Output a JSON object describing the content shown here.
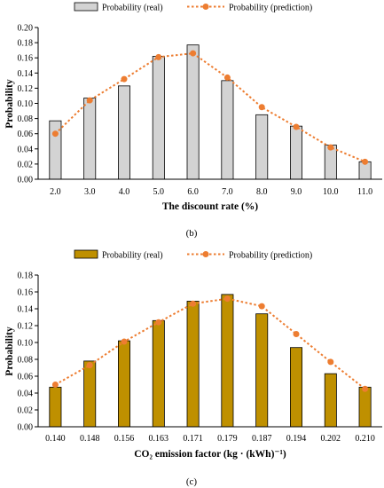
{
  "chart_data": [
    {
      "type": "bar",
      "panel_label": "(b)",
      "xlabel": "The discount rate (%)",
      "ylabel": "Probability",
      "ylim": [
        0,
        0.2
      ],
      "yticks": [
        "0.00",
        "0.02",
        "0.04",
        "0.06",
        "0.08",
        "0.10",
        "0.12",
        "0.14",
        "0.16",
        "0.18",
        "0.20"
      ],
      "categories": [
        "2.0",
        "3.0",
        "4.0",
        "5.0",
        "6.0",
        "7.0",
        "8.0",
        "9.0",
        "10.0",
        "11.0"
      ],
      "series": [
        {
          "name": "Probability (real)",
          "kind": "bar",
          "color": "#d3d3d3",
          "values": [
            0.077,
            0.107,
            0.123,
            0.162,
            0.177,
            0.13,
            0.085,
            0.07,
            0.045,
            0.023
          ]
        },
        {
          "name": "Probability (prediction)",
          "kind": "line",
          "color": "#ed7d31",
          "values": [
            0.06,
            0.104,
            0.132,
            0.161,
            0.166,
            0.134,
            0.095,
            0.069,
            0.042,
            0.023
          ]
        }
      ],
      "legend": "top-center",
      "grid": false
    },
    {
      "type": "bar",
      "panel_label": "(c)",
      "xlabel": "CO₂ emission factor (kg · (kWh)⁻¹)",
      "ylabel": "Probability",
      "ylim": [
        0,
        0.18
      ],
      "yticks": [
        "0.00",
        "0.02",
        "0.04",
        "0.06",
        "0.08",
        "0.10",
        "0.12",
        "0.14",
        "0.16",
        "0.18"
      ],
      "categories": [
        "0.140",
        "0.148",
        "0.156",
        "0.163",
        "0.171",
        "0.179",
        "0.187",
        "0.194",
        "0.202",
        "0.210"
      ],
      "series": [
        {
          "name": "Probability (real)",
          "kind": "bar",
          "color": "#bf9000",
          "values": [
            0.047,
            0.078,
            0.102,
            0.126,
            0.149,
            0.157,
            0.134,
            0.094,
            0.063,
            0.047
          ]
        },
        {
          "name": "Probability (prediction)",
          "kind": "line",
          "color": "#ed7d31",
          "values": [
            0.05,
            0.073,
            0.101,
            0.124,
            0.146,
            0.152,
            0.143,
            0.11,
            0.077,
            0.045
          ]
        }
      ],
      "legend": "top-center",
      "grid": false
    }
  ]
}
